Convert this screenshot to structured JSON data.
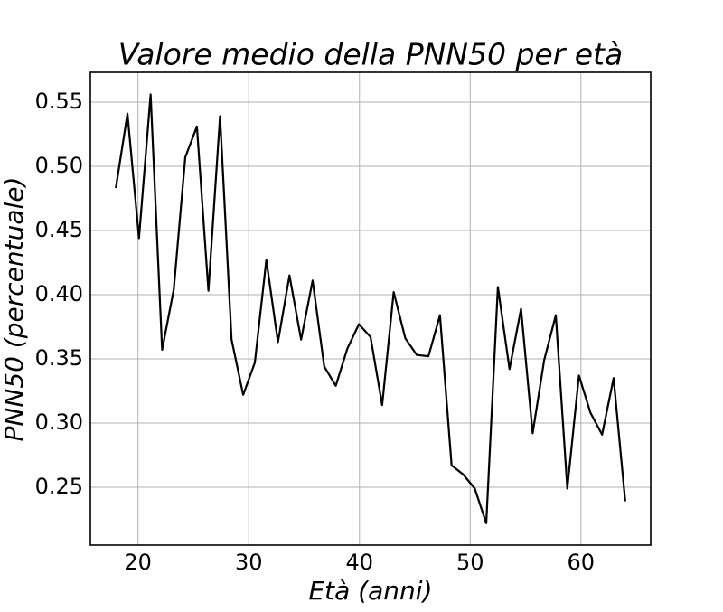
{
  "chart_data": {
    "type": "line",
    "title": "Valore medio della PNN50 per età",
    "x_label": "Età (anni)",
    "y_label": "PNN50 (percentuale)",
    "x": [
      18.0,
      19.05,
      20.09,
      21.14,
      22.18,
      23.23,
      24.27,
      25.32,
      26.36,
      27.41,
      28.45,
      29.5,
      30.55,
      31.59,
      32.64,
      33.68,
      34.73,
      35.77,
      36.82,
      37.86,
      38.91,
      39.95,
      41.0,
      42.05,
      43.09,
      44.14,
      45.18,
      46.23,
      47.27,
      48.32,
      49.36,
      50.41,
      51.45,
      52.5,
      53.55,
      54.59,
      55.64,
      56.68,
      57.73,
      58.77,
      59.82,
      60.86,
      61.91,
      62.95,
      64.0
    ],
    "series": [
      {
        "name": "PNN50",
        "color": "#000000",
        "values": [
          0.483,
          0.541,
          0.444,
          0.556,
          0.357,
          0.404,
          0.507,
          0.531,
          0.403,
          0.539,
          0.365,
          0.322,
          0.347,
          0.427,
          0.363,
          0.415,
          0.365,
          0.411,
          0.344,
          0.329,
          0.358,
          0.377,
          0.367,
          0.314,
          0.402,
          0.366,
          0.353,
          0.352,
          0.384,
          0.267,
          0.26,
          0.249,
          0.222,
          0.406,
          0.342,
          0.389,
          0.292,
          0.349,
          0.384,
          0.249,
          0.337,
          0.308,
          0.291,
          0.335,
          0.239
        ]
      }
    ],
    "xlim": [
      15.7,
      66.3
    ],
    "ylim": [
      0.2049,
      0.5732
    ],
    "xticks": [
      20,
      30,
      40,
      50,
      60
    ],
    "yticks": [
      0.25,
      {
        "value": 0.3,
        "label": "0.30"
      },
      0.35,
      {
        "value": 0.4,
        "label": "0.40"
      },
      0.45,
      {
        "value": 0.5,
        "label": "0.50"
      },
      0.55
    ],
    "grid": true
  }
}
